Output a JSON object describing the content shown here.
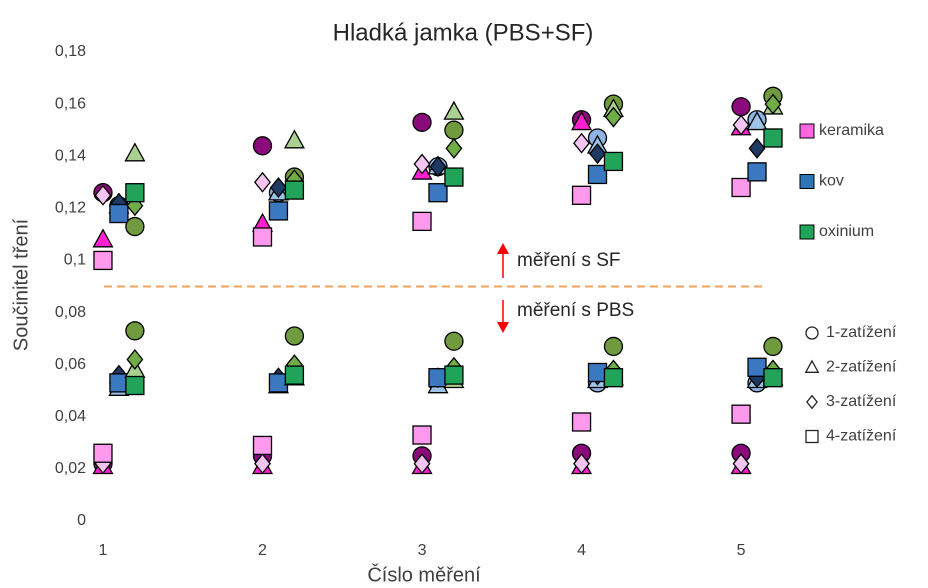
{
  "chart_data": {
    "type": "scatter",
    "title": "Hladká jamka (PBS+SF)",
    "xlabel": "Číslo měření",
    "ylabel": "Součinitel tření",
    "xlim": [
      0.95,
      5.15
    ],
    "xticks": [
      1,
      2,
      3,
      4,
      5
    ],
    "ylim": [
      0,
      0.18
    ],
    "yticks": [
      0,
      {
        "value": 0.02,
        "label": "0,02"
      },
      {
        "value": 0.04,
        "label": "0,04"
      },
      {
        "value": 0.06,
        "label": "0,06"
      },
      {
        "value": 0.08,
        "label": "0,08"
      },
      {
        "value": 0.1,
        "label": "0,1"
      },
      {
        "value": 0.12,
        "label": "0,12"
      },
      {
        "value": 0.14,
        "label": "0,14"
      },
      {
        "value": 0.16,
        "label": "0,16"
      },
      {
        "value": 0.18,
        "label": "0,18"
      }
    ],
    "grid": false,
    "threshold": {
      "value": 0.09,
      "color": "#f4a15d"
    },
    "annotations": [
      "měření s SF",
      "měření s PBS"
    ],
    "loads": [
      {
        "name": "1-zatížení",
        "marker": "circle"
      },
      {
        "name": "2-zatížení",
        "marker": "triangle"
      },
      {
        "name": "3-zatížení",
        "marker": "diamond"
      },
      {
        "name": "4-zatížení",
        "marker": "square"
      }
    ],
    "materials": [
      {
        "name": "keramika",
        "color": "#ff66e0",
        "series": [
          {
            "color": "#8a0a7c",
            "x": [
              1,
              2,
              3,
              4,
              5,
              1,
              2,
              3,
              4,
              5
            ],
            "values": [
              0.126,
              0.144,
              0.153,
              0.154,
              0.159,
              0.022,
              0.025,
              0.025,
              0.026,
              0.026
            ]
          },
          {
            "color": "#ff1fd0",
            "x": [
              1,
              2,
              3,
              4,
              5,
              1,
              2,
              3,
              4,
              5
            ],
            "values": [
              0.108,
              0.114,
              0.134,
              0.153,
              0.151,
              0.021,
              0.021,
              0.021,
              0.021,
              0.021
            ]
          },
          {
            "color": "#f5c4f0",
            "x": [
              1,
              2,
              3,
              4,
              5,
              1,
              2,
              3,
              4,
              5
            ],
            "values": [
              0.125,
              0.13,
              0.137,
              0.145,
              0.152,
              0.022,
              0.022,
              0.022,
              0.022,
              0.022
            ]
          },
          {
            "color": "#ff99ee",
            "x": [
              1,
              2,
              3,
              4,
              5,
              1,
              2,
              3,
              4,
              5
            ],
            "values": [
              0.1,
              0.109,
              0.115,
              0.125,
              0.128,
              0.026,
              0.029,
              0.033,
              0.038,
              0.041
            ]
          }
        ]
      },
      {
        "name": "kov",
        "color": "#2e75b6",
        "series": [
          {
            "color": "#8fb4e3",
            "x": [
              1.1,
              2.1,
              3.1,
              4.1,
              5.1,
              1.1,
              2.1,
              3.1,
              4.1,
              5.1
            ],
            "values": [
              0.121,
              0.126,
              0.136,
              0.147,
              0.154,
              0.053,
              0.053,
              0.053,
              0.053,
              0.053
            ]
          },
          {
            "color": "#9dc3e6",
            "x": [
              1.1,
              2.1,
              3.1,
              4.1,
              5.1,
              1.1,
              2.1,
              3.1,
              4.1,
              5.1
            ],
            "values": [
              0.121,
              0.126,
              0.136,
              0.144,
              0.153,
              0.051,
              0.052,
              0.052,
              0.054,
              0.054
            ]
          },
          {
            "color": "#203864",
            "x": [
              1.1,
              2.1,
              3.1,
              4.1,
              5.1,
              1.1,
              2.1,
              3.1,
              4.1,
              5.1
            ],
            "values": [
              0.122,
              0.128,
              0.136,
              0.141,
              0.143,
              0.056,
              0.055,
              0.055,
              0.056,
              0.055
            ]
          },
          {
            "color": "#3a78c0",
            "x": [
              1.1,
              2.1,
              3.1,
              4.1,
              5.1,
              1.1,
              2.1,
              3.1,
              4.1,
              5.1
            ],
            "values": [
              0.118,
              0.119,
              0.126,
              0.133,
              0.134,
              0.053,
              0.053,
              0.055,
              0.057,
              0.059
            ]
          }
        ]
      },
      {
        "name": "oxinium",
        "color": "#1fa45a",
        "series": [
          {
            "color": "#6f9a3e",
            "x": [
              1.2,
              2.2,
              3.2,
              4.2,
              5.2,
              1.2,
              2.2,
              3.2,
              4.2,
              5.2
            ],
            "values": [
              0.113,
              0.132,
              0.15,
              0.16,
              0.163,
              0.073,
              0.071,
              0.069,
              0.067,
              0.067
            ]
          },
          {
            "color": "#a9d08e",
            "x": [
              1.2,
              2.2,
              3.2,
              4.2,
              5.2,
              1.2,
              2.2,
              3.2,
              4.2,
              5.2
            ],
            "values": [
              0.141,
              0.146,
              0.157,
              0.158,
              0.159,
              0.058,
              0.055,
              0.054,
              0.055,
              0.055
            ]
          },
          {
            "color": "#70ad47",
            "x": [
              1.2,
              2.2,
              3.2,
              4.2,
              5.2,
              1.2,
              2.2,
              3.2,
              4.2,
              5.2
            ],
            "values": [
              0.121,
              0.131,
              0.143,
              0.155,
              0.16,
              0.062,
              0.06,
              0.059,
              0.058,
              0.058
            ]
          },
          {
            "color": "#21a35a",
            "x": [
              1.2,
              2.2,
              3.2,
              4.2,
              5.2,
              1.2,
              2.2,
              3.2,
              4.2,
              5.2
            ],
            "values": [
              0.126,
              0.127,
              0.132,
              0.138,
              0.147,
              0.052,
              0.056,
              0.056,
              0.055,
              0.055
            ]
          }
        ]
      }
    ]
  }
}
